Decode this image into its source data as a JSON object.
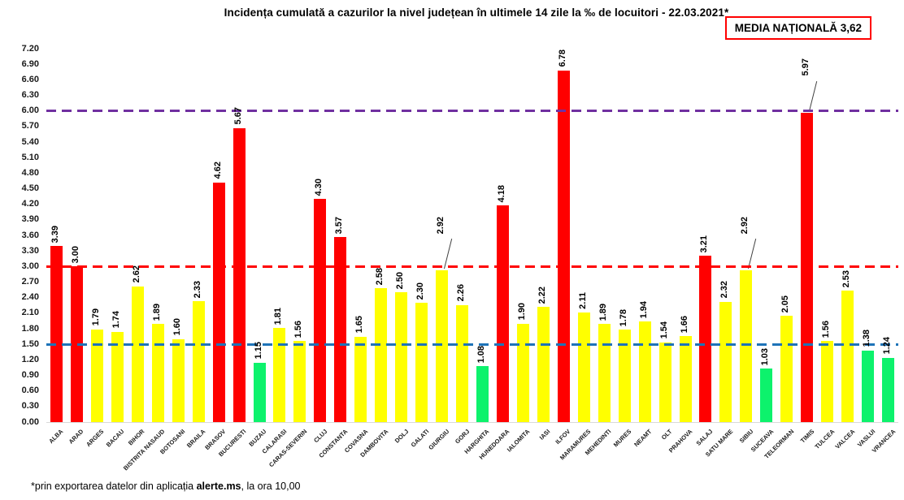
{
  "title": "Incidența cumulată a cazurilor la nivel județean în ultimele 14 zile la ‰ de locuitori - 22.03.2021*",
  "national_average_box": "MEDIA NAȚIONALĂ 3,62",
  "footer": {
    "prefix": "*prin exportarea datelor din aplicația ",
    "bold": "alerte.ms",
    "suffix": ", la ora 10,00"
  },
  "chart_data": {
    "type": "bar",
    "title": "Incidența cumulată a cazurilor la nivel județean în ultimele 14 zile la ‰ de locuitori - 22.03.2021*",
    "xlabel": "",
    "ylabel": "",
    "ylim": [
      0,
      7.2
    ],
    "y_tick_step": 0.3,
    "y_ticks": [
      "0.00",
      "0.30",
      "0.60",
      "0.90",
      "1.20",
      "1.50",
      "1.80",
      "2.10",
      "2.40",
      "2.70",
      "3.00",
      "3.30",
      "3.60",
      "3.90",
      "4.20",
      "4.50",
      "4.80",
      "5.10",
      "5.40",
      "5.70",
      "6.00",
      "6.30",
      "6.60",
      "6.90",
      "7.20"
    ],
    "grid": false,
    "legend": false,
    "categories": [
      "ALBA",
      "ARAD",
      "ARGES",
      "BACAU",
      "BIHOR",
      "BISTRITA NASAUD",
      "BOTOSANI",
      "BRAILA",
      "BRASOV",
      "BUCURESTI",
      "BUZAU",
      "CALARASI",
      "CARAS-SEVERIN",
      "CLUJ",
      "CONSTANTA",
      "COVASNA",
      "DAMBOVITA",
      "DOLJ",
      "GALATI",
      "GIURGIU",
      "GORJ",
      "HARGHITA",
      "HUNEDOARA",
      "IALOMITA",
      "IASI",
      "ILFOV",
      "MARAMURES",
      "MEHEDINTI",
      "MURES",
      "NEAMT",
      "OLT",
      "PRAHOVA",
      "SALAJ",
      "SATU MARE",
      "SIBIU",
      "SUCEAVA",
      "TELEORMAN",
      "TIMIS",
      "TULCEA",
      "VALCEA",
      "VASLUI",
      "VRANCEA"
    ],
    "values": [
      3.39,
      3.0,
      1.79,
      1.74,
      2.62,
      1.89,
      1.6,
      2.33,
      4.62,
      5.67,
      1.15,
      1.81,
      1.56,
      4.3,
      3.57,
      1.65,
      2.58,
      2.5,
      2.3,
      2.92,
      2.26,
      1.08,
      4.18,
      1.9,
      2.22,
      6.78,
      2.11,
      1.89,
      1.78,
      1.94,
      1.54,
      1.66,
      3.21,
      2.32,
      2.92,
      1.03,
      2.05,
      5.97,
      1.56,
      2.53,
      1.38,
      1.24
    ],
    "bar_colors": [
      "#FF0000",
      "#FF0000",
      "#FFFF00",
      "#FFFF00",
      "#FFFF00",
      "#FFFF00",
      "#FFFF00",
      "#FFFF00",
      "#FF0000",
      "#FF0000",
      "#0DF26C",
      "#FFFF00",
      "#FFFF00",
      "#FF0000",
      "#FF0000",
      "#FFFF00",
      "#FFFF00",
      "#FFFF00",
      "#FFFF00",
      "#FFFF00",
      "#FFFF00",
      "#0DF26C",
      "#FF0000",
      "#FFFF00",
      "#FFFF00",
      "#FF0000",
      "#FFFF00",
      "#FFFF00",
      "#FFFF00",
      "#FFFF00",
      "#FFFF00",
      "#FFFF00",
      "#FF0000",
      "#FFFF00",
      "#FFFF00",
      "#0DF26C",
      "#FFFF00",
      "#FF0000",
      "#FFFF00",
      "#FFFF00",
      "#0DF26C",
      "#0DF26C"
    ],
    "color_legend": {
      "red_over_3": "#FF0000",
      "yellow_1_5_to_3": "#FFFF00",
      "green_under_1_5": "#0DF26C"
    },
    "callout_labels": [
      "GIURGIU",
      "SIBIU",
      "TIMIS"
    ],
    "thresholds": [
      {
        "value": 1.5,
        "color": "#1E73B8"
      },
      {
        "value": 3.0,
        "color": "#FF0000"
      },
      {
        "value": 6.0,
        "color": "#7030A0"
      }
    ]
  }
}
